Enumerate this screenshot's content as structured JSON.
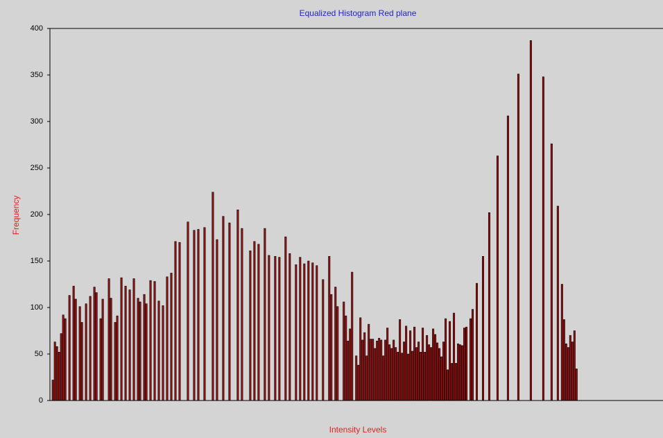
{
  "chart_data": {
    "type": "bar",
    "title": "Equalized Histogram Red plane",
    "xlabel": "Intensity Levels",
    "ylabel": "Frequency",
    "color": "#9b1111",
    "xlim": [
      -1,
      294
    ],
    "ylim": [
      0,
      400
    ],
    "yticks": [
      0,
      50,
      100,
      150,
      200,
      250,
      300,
      350,
      400
    ],
    "x": [
      0,
      1,
      2,
      3,
      4,
      5,
      6,
      8,
      10,
      11,
      13,
      14,
      16,
      18,
      20,
      21,
      23,
      24,
      27,
      28,
      30,
      31,
      33,
      35,
      37,
      39,
      41,
      42,
      44,
      45,
      47,
      49,
      51,
      53,
      55,
      57,
      59,
      61,
      65,
      68,
      70,
      73,
      77,
      79,
      82,
      85,
      89,
      91,
      95,
      97,
      99,
      102,
      104,
      107,
      109,
      112,
      114,
      117,
      119,
      121,
      123,
      125,
      127,
      130,
      133,
      134,
      136,
      137,
      140,
      141,
      142,
      143,
      144,
      146,
      147,
      148,
      149,
      150,
      151,
      152,
      153,
      154,
      155,
      156,
      157,
      158,
      159,
      160,
      161,
      162,
      163,
      164,
      165,
      166,
      167,
      168,
      169,
      170,
      171,
      172,
      173,
      174,
      175,
      176,
      177,
      178,
      179,
      180,
      181,
      182,
      183,
      184,
      185,
      186,
      187,
      188,
      189,
      190,
      191,
      192,
      193,
      194,
      195,
      196,
      197,
      198,
      199,
      201,
      202,
      204,
      207,
      210,
      214,
      219,
      224,
      230,
      236,
      240,
      243,
      245,
      246,
      247,
      248,
      249,
      250,
      251,
      252
    ],
    "values": [
      22,
      63,
      58,
      52,
      72,
      92,
      88,
      113,
      123,
      109,
      101,
      84,
      104,
      112,
      122,
      116,
      88,
      109,
      131,
      110,
      84,
      91,
      132,
      123,
      119,
      131,
      110,
      106,
      114,
      104,
      129,
      128,
      107,
      102,
      133,
      137,
      171,
      170,
      192,
      183,
      184,
      186,
      224,
      173,
      198,
      191,
      205,
      185,
      161,
      171,
      168,
      185,
      156,
      155,
      154,
      176,
      158,
      146,
      154,
      147,
      150,
      148,
      145,
      130,
      155,
      114,
      122,
      101,
      106,
      91,
      64,
      77,
      138,
      48,
      38,
      89,
      65,
      73,
      48,
      82,
      66,
      66,
      56,
      64,
      67,
      65,
      48,
      65,
      78,
      60,
      56,
      65,
      57,
      52,
      87,
      51,
      63,
      80,
      50,
      75,
      53,
      79,
      57,
      63,
      52,
      78,
      52,
      70,
      60,
      57,
      77,
      71,
      62,
      56,
      47,
      63,
      88,
      33,
      85,
      40,
      94,
      40,
      61,
      60,
      59,
      78,
      79,
      88,
      98,
      126,
      155,
      202,
      263,
      306,
      351,
      387,
      348,
      276,
      209,
      125,
      87,
      61,
      57,
      70,
      63,
      75,
      34
    ]
  }
}
